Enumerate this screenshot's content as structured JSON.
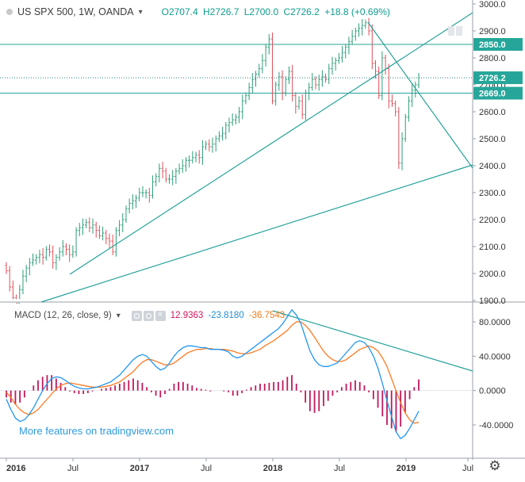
{
  "header": {
    "symbol": "US SPX 500, 1W, OANDA",
    "open": "O2707.4",
    "high": "H2726.7",
    "low": "L2700.0",
    "close": "C2726.2",
    "change": "+18.8 (+0.69%)"
  },
  "price_axis": {
    "ticks": [
      "3000.0",
      "2900.0",
      "2800.0",
      "2700.0",
      "2600.0",
      "2500.0",
      "2400.0",
      "2300.0",
      "2200.0",
      "2100.0",
      "2000.0",
      "1900.0"
    ],
    "labels": {
      "resistance": "2850.0",
      "last": "2726.2",
      "support": "2669.0"
    }
  },
  "macd": {
    "label": "MACD (12, 26, close, 9)",
    "value_hist": "12.9363",
    "value_macd": "-23.8180",
    "value_signal": "-36.7543",
    "ticks": [
      "80.0000",
      "40.0000",
      "0.0000",
      "-40.0000"
    ]
  },
  "time_axis": [
    "2016",
    "Jul",
    "2017",
    "Jul",
    "2018",
    "Jul",
    "2019",
    "Jul"
  ],
  "watermark": "More features on tradingview.com",
  "colors": {
    "up": "#2e9e7a",
    "down": "#e0505a",
    "trendline": "#27a39a",
    "macd_line": "#2196f3",
    "signal_line": "#ff7b22",
    "histogram": "#c2185b",
    "price_label": "#26a69a"
  },
  "chart_data": {
    "type": "candlestick",
    "timeframe": "1W",
    "ylim": [
      1900,
      3000
    ],
    "horizontal_levels": [
      2850.0,
      2726.2,
      2669.0
    ],
    "price_path_weekly_close": [
      2010,
      1950,
      1910,
      1890,
      1940,
      1990,
      2020,
      2040,
      2050,
      2060,
      2070,
      2060,
      2090,
      2080,
      2040,
      2060,
      2080,
      2100,
      2090,
      2070,
      2080,
      2160,
      2170,
      2180,
      2190,
      2170,
      2180,
      2160,
      2140,
      2150,
      2130,
      2120,
      2080,
      2160,
      2180,
      2200,
      2240,
      2260,
      2270,
      2280,
      2300,
      2300,
      2300,
      2290,
      2340,
      2360,
      2390,
      2380,
      2350,
      2350,
      2360,
      2380,
      2390,
      2400,
      2420,
      2420,
      2430,
      2440,
      2430,
      2470,
      2480,
      2470,
      2480,
      2500,
      2510,
      2520,
      2550,
      2560,
      2570,
      2580,
      2600,
      2640,
      2660,
      2690,
      2720,
      2740,
      2760,
      2790,
      2840,
      2870,
      2640,
      2700,
      2730,
      2670,
      2720,
      2750,
      2660,
      2620,
      2640,
      2590,
      2670,
      2690,
      2720,
      2700,
      2720,
      2730,
      2720,
      2760,
      2780,
      2790,
      2800,
      2820,
      2840,
      2860,
      2880,
      2900,
      2910,
      2920,
      2930,
      2900,
      2780,
      2750,
      2660,
      2800,
      2760,
      2640,
      2630,
      2600,
      2410,
      2500,
      2580,
      2640,
      2680,
      2700,
      2726
    ],
    "macd_values": [
      -10,
      -22,
      -32,
      -36,
      -34,
      -28,
      -20,
      -10,
      0,
      8,
      14,
      16,
      15,
      12,
      8,
      5,
      3,
      2,
      2,
      3,
      4,
      6,
      8,
      10,
      14,
      18,
      24,
      30,
      36,
      40,
      42,
      40,
      34,
      28,
      24,
      26,
      32,
      40,
      46,
      50,
      52,
      52,
      51,
      50,
      50,
      48,
      48,
      48,
      47,
      45,
      40,
      38,
      40,
      44,
      48,
      52,
      56,
      60,
      64,
      68,
      72,
      78,
      86,
      94,
      88,
      78,
      62,
      46,
      36,
      30,
      28,
      28,
      30,
      32,
      38,
      44,
      50,
      56,
      58,
      56,
      50,
      40,
      26,
      8,
      -12,
      -30,
      -48,
      -56,
      -52,
      -44,
      -34,
      -24
    ],
    "signal_values": [
      -2,
      -8,
      -16,
      -22,
      -26,
      -28,
      -26,
      -22,
      -16,
      -10,
      -4,
      2,
      6,
      8,
      9,
      8,
      7,
      6,
      5,
      4,
      4,
      4,
      5,
      6,
      8,
      10,
      14,
      18,
      22,
      28,
      33,
      36,
      36,
      34,
      32,
      30,
      30,
      32,
      36,
      40,
      44,
      46,
      48,
      48,
      49,
      49,
      48,
      48,
      48,
      47,
      46,
      44,
      43,
      43,
      44,
      46,
      48,
      52,
      55,
      58,
      62,
      66,
      70,
      76,
      80,
      80,
      76,
      70,
      62,
      54,
      46,
      40,
      36,
      34,
      34,
      36,
      40,
      44,
      48,
      50,
      52,
      50,
      46,
      38,
      28,
      14,
      0,
      -14,
      -26,
      -34,
      -38,
      -37
    ],
    "histogram_values": [
      -8,
      -14,
      -16,
      -14,
      -8,
      0,
      6,
      12,
      16,
      18,
      18,
      14,
      9,
      4,
      -1,
      -3,
      -4,
      -4,
      -3,
      -1,
      0,
      2,
      3,
      4,
      6,
      8,
      10,
      12,
      14,
      12,
      9,
      4,
      -2,
      -6,
      -8,
      -4,
      2,
      8,
      10,
      10,
      8,
      6,
      3,
      2,
      1,
      -1,
      0,
      0,
      -1,
      -2,
      -6,
      -6,
      -3,
      1,
      4,
      6,
      8,
      8,
      9,
      10,
      10,
      12,
      16,
      18,
      8,
      -2,
      -14,
      -24,
      -26,
      -24,
      -18,
      -12,
      -6,
      -2,
      4,
      8,
      10,
      12,
      10,
      6,
      -2,
      -10,
      -20,
      -30,
      -40,
      -44,
      -48,
      -42,
      -26,
      -10,
      4,
      13
    ],
    "series": [
      {
        "name": "MACD (12, 26, close, 9)",
        "last": -23.818
      },
      {
        "name": "Signal",
        "last": -36.7543
      },
      {
        "name": "Histogram",
        "last": 12.9363
      }
    ]
  }
}
